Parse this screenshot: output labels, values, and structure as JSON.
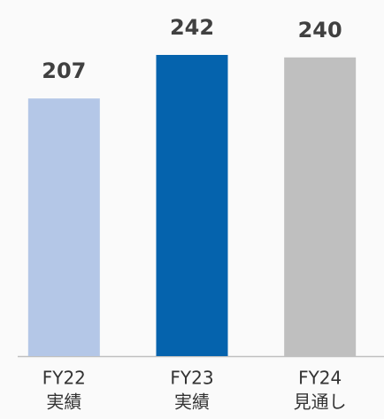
{
  "chart_data": {
    "type": "bar",
    "categories": [
      [
        "FY22",
        "実績"
      ],
      [
        "FY23",
        "実績"
      ],
      [
        "FY24",
        "見通し"
      ]
    ],
    "values": [
      207,
      242,
      240
    ],
    "colors": [
      "#b4c7e7",
      "#0563ad",
      "#bfbfbf"
    ]
  }
}
